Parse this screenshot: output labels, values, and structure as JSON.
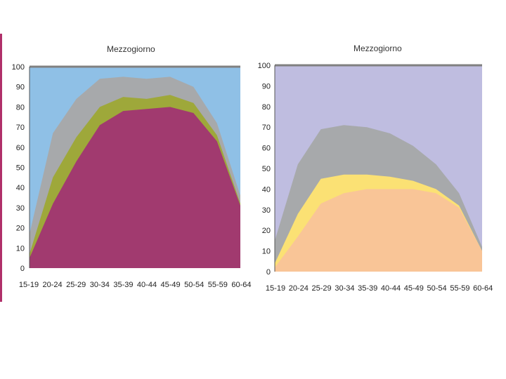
{
  "colors": {
    "left_background": "#8fc0e6",
    "left_band_gray": "#a7a9ab",
    "left_band_olive": "#9ea83a",
    "left_band_main": "#a13a6f",
    "right_background": "#bfbde0",
    "right_band_gray": "#a7a9ab",
    "right_band_yellow": "#fbe174",
    "right_band_main": "#f9c597",
    "top_line": "#808080",
    "accent": "#b0306a"
  },
  "chart_data": [
    {
      "type": "area",
      "title": "Mezzogiorno",
      "categories": [
        "15-19",
        "20-24",
        "25-29",
        "30-34",
        "35-39",
        "40-44",
        "45-49",
        "50-54",
        "55-59",
        "60-64"
      ],
      "y_ticks": [
        0,
        10,
        20,
        30,
        40,
        50,
        60,
        70,
        80,
        90,
        100
      ],
      "ylim": [
        0,
        100
      ],
      "grid": false,
      "stacked": true,
      "series": [
        {
          "values": [
            5,
            32,
            53,
            71,
            78,
            79,
            80,
            77,
            63,
            31
          ]
        },
        {
          "values": [
            2,
            13,
            12,
            9,
            7,
            5,
            6,
            5,
            3,
            1
          ]
        },
        {
          "values": [
            10,
            22,
            19,
            14,
            10,
            10,
            9,
            8,
            6,
            4
          ]
        },
        {
          "values": [
            83,
            33,
            16,
            6,
            5,
            6,
            5,
            10,
            28,
            64
          ]
        }
      ]
    },
    {
      "type": "area",
      "title": "Mezzogiorno",
      "categories": [
        "15-19",
        "20-24",
        "25-29",
        "30-34",
        "35-39",
        "40-44",
        "45-49",
        "50-54",
        "55-59",
        "60-64"
      ],
      "y_ticks": [
        0,
        10,
        20,
        30,
        40,
        50,
        60,
        70,
        80,
        90,
        100
      ],
      "ylim": [
        0,
        100
      ],
      "grid": false,
      "stacked": true,
      "series": [
        {
          "values": [
            2,
            17,
            33,
            38,
            40,
            40,
            40,
            38,
            31,
            10
          ]
        },
        {
          "values": [
            2,
            11,
            12,
            9,
            7,
            6,
            4,
            2,
            1,
            0
          ]
        },
        {
          "values": [
            11,
            24,
            24,
            24,
            23,
            21,
            17,
            12,
            6,
            2
          ]
        },
        {
          "values": [
            85,
            48,
            31,
            29,
            30,
            33,
            39,
            48,
            62,
            88
          ]
        }
      ]
    }
  ]
}
